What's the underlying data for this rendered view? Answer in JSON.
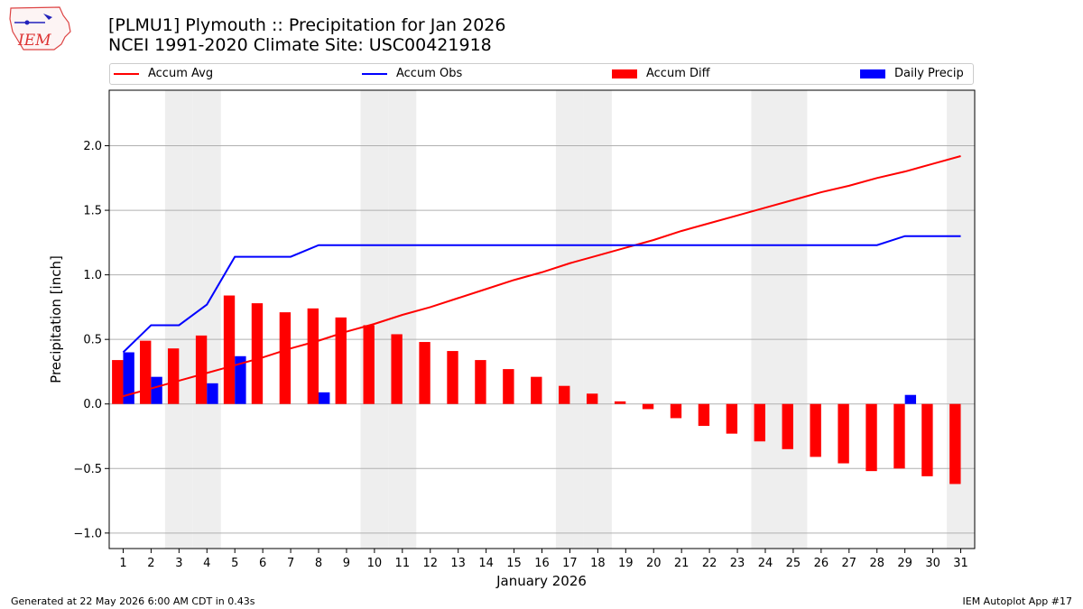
{
  "logo": {
    "text": "IEM"
  },
  "header": {
    "title_line1": "[PLMU1] Plymouth :: Precipitation for Jan 2026",
    "title_line2": "NCEI 1991-2020 Climate Site: USC00421918"
  },
  "legend": {
    "items": [
      {
        "label": "Accum Avg",
        "kind": "line",
        "color": "#ff0000"
      },
      {
        "label": "Accum Obs",
        "kind": "line",
        "color": "#0000ff"
      },
      {
        "label": "Accum Diff",
        "kind": "patch",
        "color": "#ff0000"
      },
      {
        "label": "Daily Precip",
        "kind": "patch",
        "color": "#0000ff"
      }
    ]
  },
  "footer": {
    "left": "Generated at 22 May 2026 6:00 AM CDT in 0.43s",
    "right": "IEM Autoplot App #17"
  },
  "chart_data": {
    "type": "bar",
    "xlabel": "January 2026",
    "ylabel": "Precipitation [inch]",
    "ylim": [
      -1.12,
      2.43
    ],
    "xlim": [
      0.5,
      31.5
    ],
    "yticks": [
      -1.0,
      -0.5,
      0.0,
      0.5,
      1.0,
      1.5,
      2.0
    ],
    "ytick_labels": [
      "−1.0",
      "−0.5",
      "0.0",
      "0.5",
      "1.0",
      "1.5",
      "2.0"
    ],
    "x": [
      1,
      2,
      3,
      4,
      5,
      6,
      7,
      8,
      9,
      10,
      11,
      12,
      13,
      14,
      15,
      16,
      17,
      18,
      19,
      20,
      21,
      22,
      23,
      24,
      25,
      26,
      27,
      28,
      29,
      30,
      31
    ],
    "weekend_days": [
      3,
      4,
      10,
      11,
      17,
      18,
      24,
      25,
      31
    ],
    "grid": "y",
    "legend_position": "top",
    "series": [
      {
        "name": "Accum Avg",
        "type": "line",
        "color": "#ff0000",
        "values": [
          0.06,
          0.12,
          0.18,
          0.24,
          0.3,
          0.36,
          0.43,
          0.49,
          0.56,
          0.62,
          0.69,
          0.75,
          0.82,
          0.89,
          0.96,
          1.02,
          1.09,
          1.15,
          1.21,
          1.27,
          1.34,
          1.4,
          1.46,
          1.52,
          1.58,
          1.64,
          1.69,
          1.75,
          1.8,
          1.86,
          1.92
        ]
      },
      {
        "name": "Accum Obs",
        "type": "line",
        "color": "#0000ff",
        "values": [
          0.4,
          0.61,
          0.61,
          0.77,
          1.14,
          1.14,
          1.14,
          1.23,
          1.23,
          1.23,
          1.23,
          1.23,
          1.23,
          1.23,
          1.23,
          1.23,
          1.23,
          1.23,
          1.23,
          1.23,
          1.23,
          1.23,
          1.23,
          1.23,
          1.23,
          1.23,
          1.23,
          1.23,
          1.3,
          1.3,
          1.3
        ]
      },
      {
        "name": "Accum Diff",
        "type": "bar",
        "color": "#ff0000",
        "values": [
          0.34,
          0.49,
          0.43,
          0.53,
          0.84,
          0.78,
          0.71,
          0.74,
          0.67,
          0.61,
          0.54,
          0.48,
          0.41,
          0.34,
          0.27,
          0.21,
          0.14,
          0.08,
          0.02,
          -0.04,
          -0.11,
          -0.17,
          -0.23,
          -0.29,
          -0.35,
          -0.41,
          -0.46,
          -0.52,
          -0.5,
          -0.56,
          -0.62
        ]
      },
      {
        "name": "Daily Precip",
        "type": "bar",
        "color": "#0000ff",
        "values": [
          0.4,
          0.21,
          0,
          0.16,
          0.37,
          0,
          0,
          0.09,
          0,
          0,
          0,
          0,
          0,
          0,
          0,
          0,
          0,
          0,
          0,
          0,
          0,
          0,
          0,
          0,
          0,
          0,
          0,
          0,
          0.07,
          0,
          0
        ]
      }
    ]
  }
}
